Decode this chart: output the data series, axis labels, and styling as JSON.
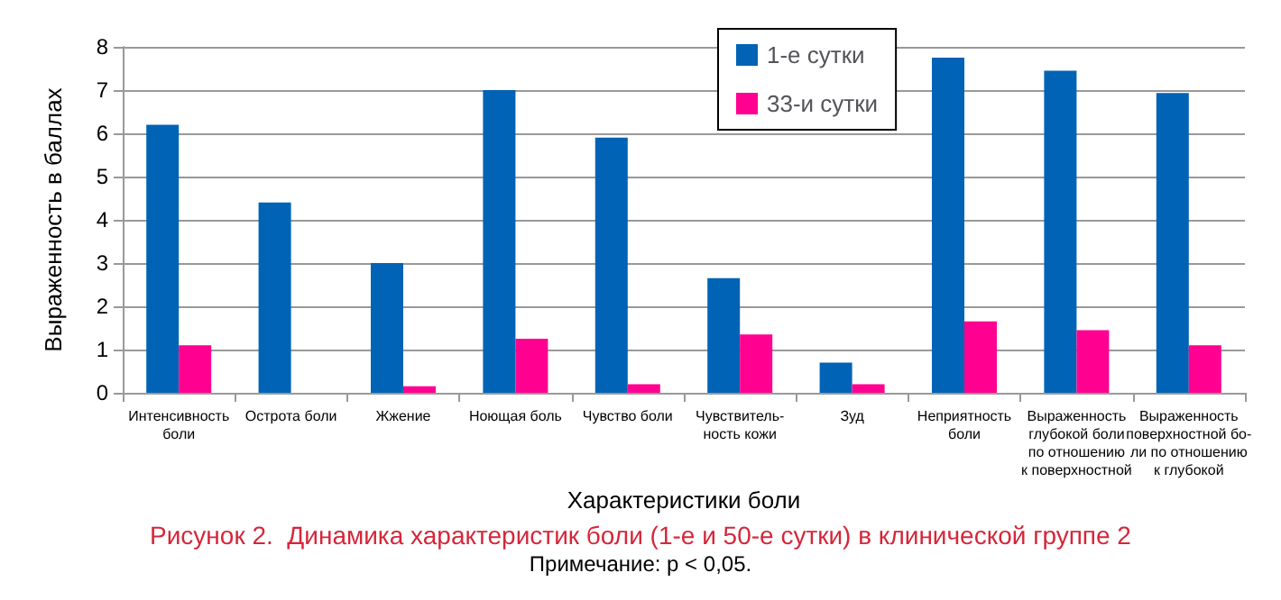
{
  "chart_data": {
    "type": "bar",
    "title": "Рисунок 2.  Динамика характеристик боли (1-е и 50-е сутки) в клинической группе 2",
    "annotations": [
      "Примечание: p < 0,05."
    ],
    "xlabel": "Характеристики боли",
    "ylabel": "Выраженность в баллах",
    "categories": [
      "Интенсивность\nболи",
      "Острота боли",
      "Жжение",
      "Ноющая боль",
      "Чувство боли",
      "Чувствитель-\nность кожи",
      "Зуд",
      "Неприятность\nболи",
      "Выраженность\nглубокой боли\nпо отношению\nк поверхностной",
      "Выраженность\nповерхностной бо-\nли по отношению\nк глубокой"
    ],
    "series": [
      {
        "name": "1-е сутки",
        "color": "#0063b5",
        "values": [
          6.2,
          4.4,
          3.0,
          7.0,
          5.9,
          2.65,
          0.7,
          7.75,
          7.45,
          6.93
        ]
      },
      {
        "name": "33-и сутки",
        "color": "#ff0090",
        "values": [
          1.1,
          0,
          0.15,
          1.25,
          0.2,
          1.35,
          0.2,
          1.65,
          1.45,
          1.1
        ]
      }
    ],
    "ylim": [
      0,
      8
    ],
    "yticks": [
      0,
      1,
      2,
      3,
      4,
      5,
      6,
      7,
      8
    ],
    "grid": "y",
    "legend": "top"
  }
}
